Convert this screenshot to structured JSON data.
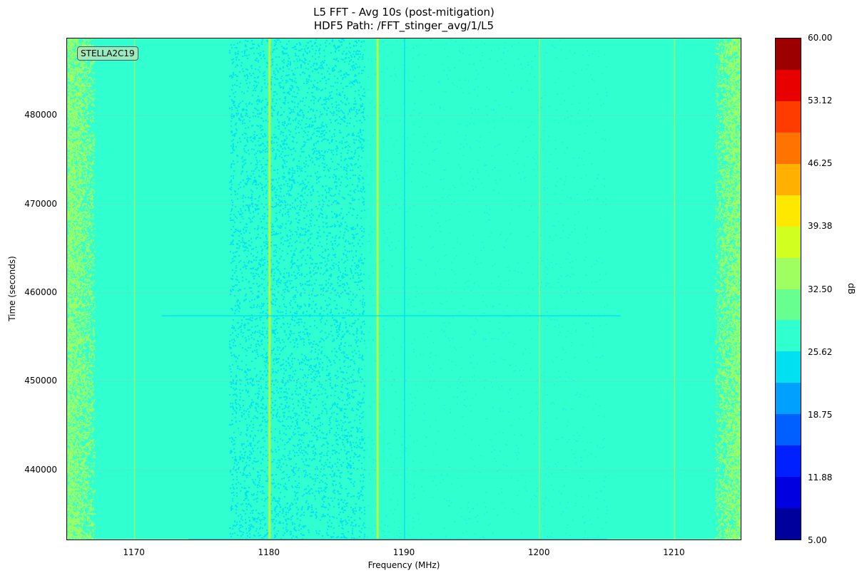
{
  "chart_data": {
    "type": "heatmap",
    "title": "L5 FFT - Avg 10s (post-mitigation)",
    "subtitle": "HDF5 Path: /FFT_stinger_avg/1/L5",
    "xlabel": "Frequency (MHz)",
    "ylabel": "Time (seconds)",
    "xlim": [
      1165,
      1215
    ],
    "ylim": [
      432000,
      488700
    ],
    "xticks": [
      "1170",
      "1180",
      "1190",
      "1200",
      "1210"
    ],
    "yticks": [
      "440000",
      "450000",
      "460000",
      "470000",
      "480000"
    ],
    "annotation": "STELLA2C19",
    "grid": true,
    "colorbar": {
      "label": "dB",
      "range": [
        5,
        60
      ],
      "ticks": [
        "5.00",
        "11.88",
        "18.75",
        "25.62",
        "32.50",
        "39.38",
        "46.25",
        "53.12",
        "60.00"
      ],
      "colors": [
        "#00009c",
        "#0000e0",
        "#0020ff",
        "#0060ff",
        "#00a0ff",
        "#00e0f0",
        "#30ffd0",
        "#66ff90",
        "#a0ff60",
        "#d0ff20",
        "#ffe800",
        "#ffb000",
        "#ff7400",
        "#ff3c00",
        "#e80000",
        "#9c0000"
      ]
    },
    "background_level_db": 29,
    "noisy_bands_mhz": [
      [
        1165,
        1167
      ],
      [
        1177,
        1187
      ],
      [
        1213,
        1215
      ]
    ],
    "vertical_lines": [
      {
        "freq_mhz": 1170,
        "level_db": 35
      },
      {
        "freq_mhz": 1180,
        "level_db": 38
      },
      {
        "freq_mhz": 1188,
        "level_db": 38
      },
      {
        "freq_mhz": 1190,
        "level_db": 24
      },
      {
        "freq_mhz": 1200,
        "level_db": 35
      },
      {
        "freq_mhz": 1210,
        "level_db": 35
      }
    ],
    "horizontal_lines": [
      {
        "time_s": 457400,
        "freq_range_mhz": [
          1172,
          1206
        ],
        "level_db": 25
      },
      {
        "time_s": 432200,
        "freq_range_mhz": [
          1174,
          1205
        ],
        "level_db": 25
      }
    ]
  }
}
